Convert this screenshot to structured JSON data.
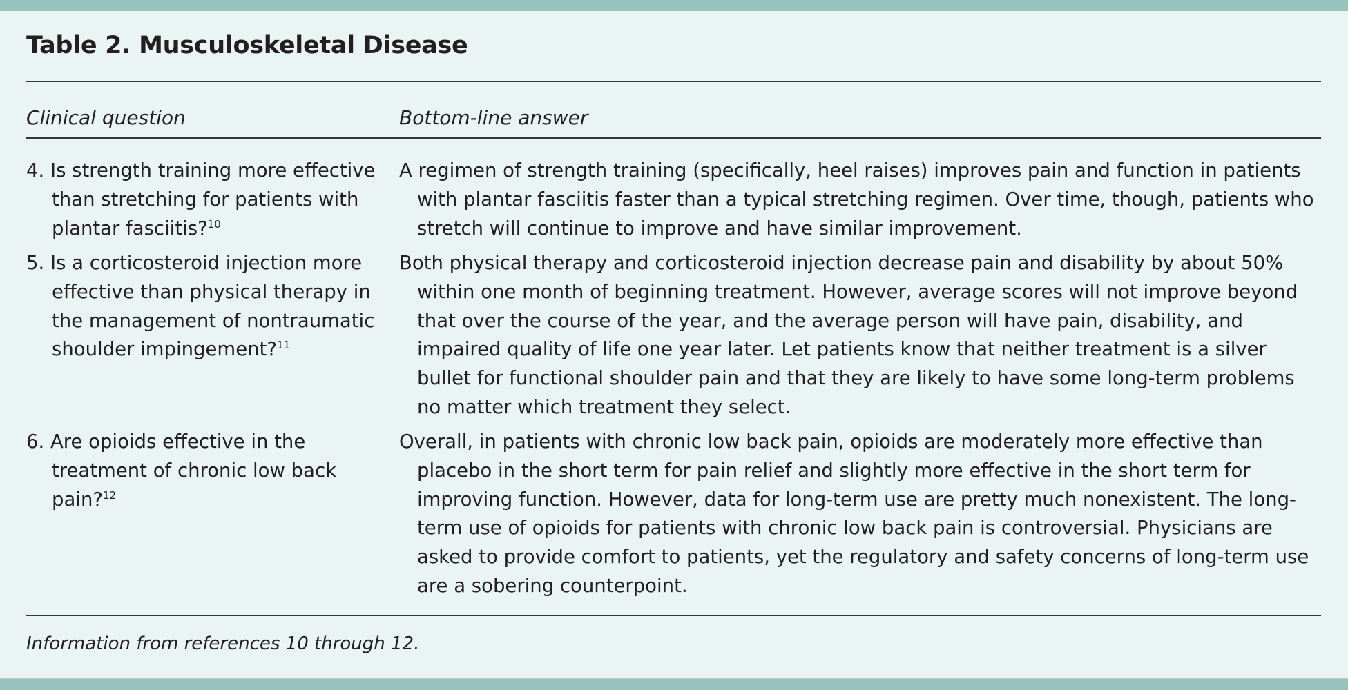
{
  "title": "Table 2. Musculoskeletal Disease",
  "columns": [
    "Clinical question",
    "Bottom-line answer"
  ],
  "rows": [
    {
      "question": "4. Is strength training more effective than stretching for patients with plantar fasciitis?",
      "ref": "10",
      "answer": "A regimen of strength training (specifically, heel raises) improves pain and function in patients with plantar fasciitis faster than a typical stretching regimen. Over time, though, patients who stretch will continue to improve and have similar improvement."
    },
    {
      "question": "5. Is a corticosteroid injection more effective than physical therapy in the management of nontraumatic shoulder impingement?",
      "ref": "11",
      "answer": "Both physical therapy and corticosteroid injection decrease pain and disability by about 50% within one month of beginning treatment. However, average scores will not improve beyond that over the course of the year, and the average person will have pain, disability, and impaired quality of life one year later. Let patients know that neither treatment is a silver bullet for functional shoulder pain and that they are likely to have some long-term problems no matter which treatment they select."
    },
    {
      "question": "6. Are opioids effective in the treatment of chronic low back pain?",
      "ref": "12",
      "answer": "Overall, in patients with chronic low back pain, opioids are moderately more effective than placebo in the short term for pain relief and slightly more effective in the short term for improving function. However, data for long-term use are pretty much nonexistent. The long-term use of opioids for patients with chronic low back pain is controversial. Physicians are asked to provide comfort to patients, yet the regulatory and safety concerns of long-term use are a sobering counterpoint."
    }
  ],
  "footnote": "Information from references 10 through 12."
}
